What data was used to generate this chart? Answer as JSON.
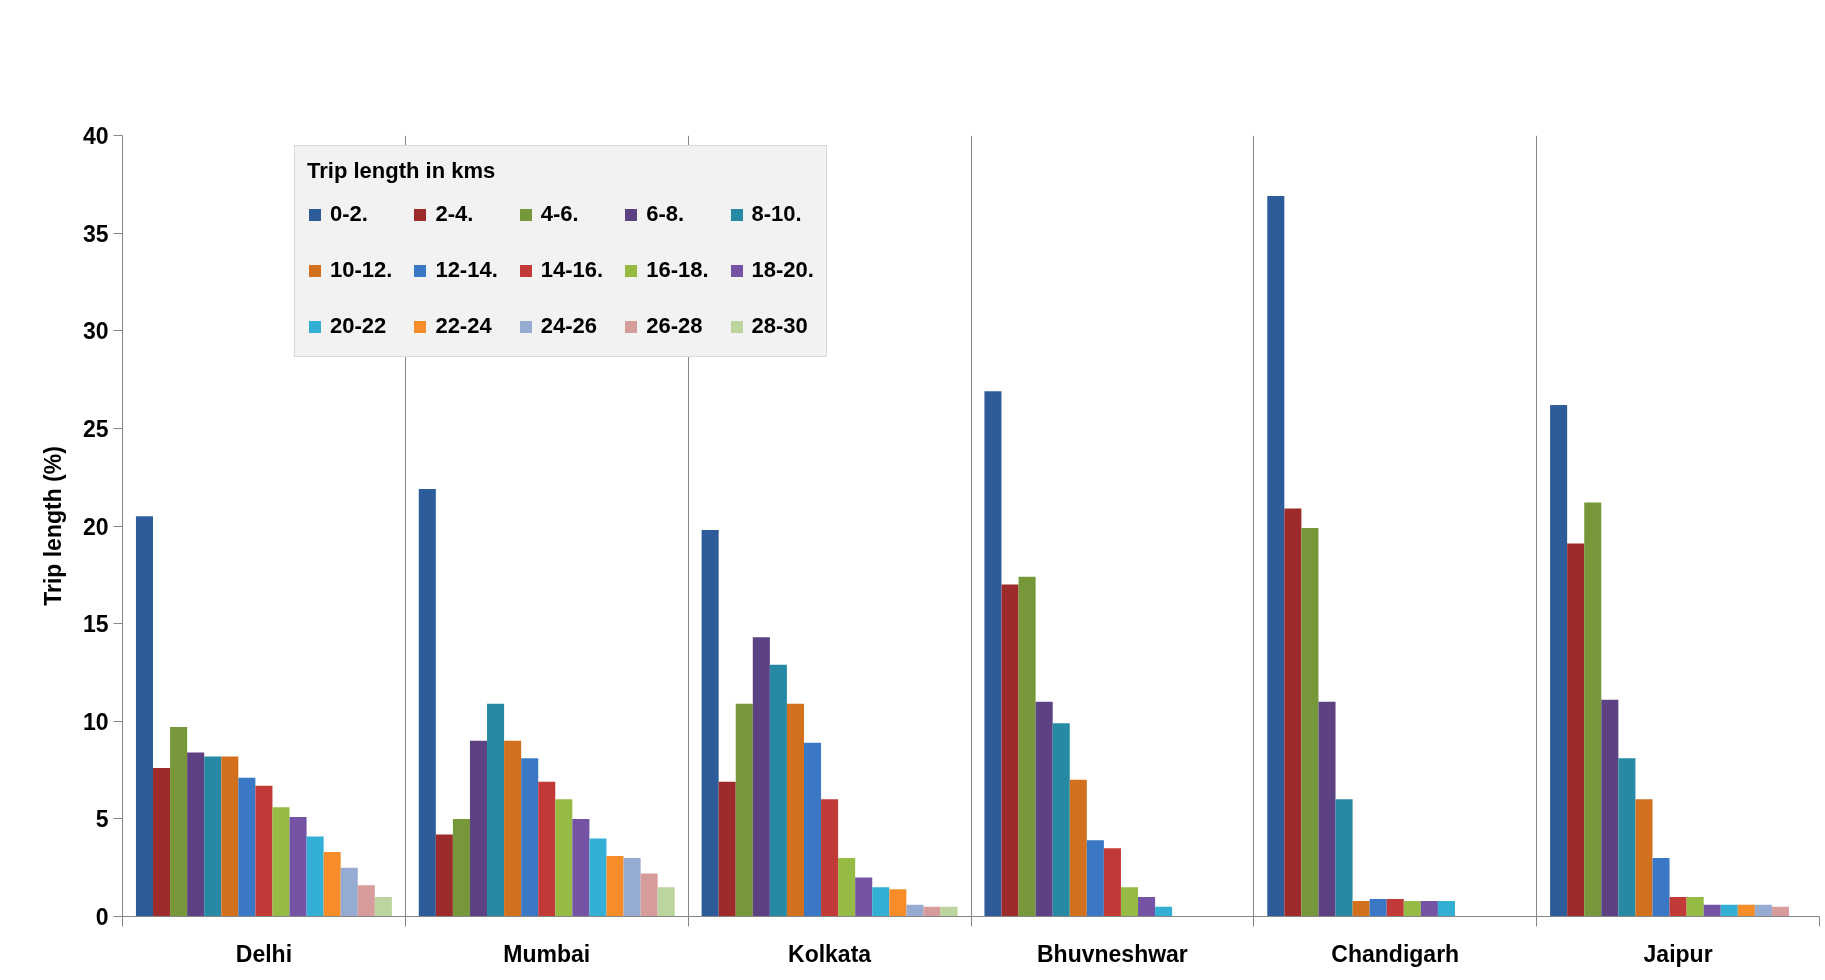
{
  "chart_data": {
    "type": "bar",
    "ylabel": "Trip length (%)",
    "legend_title": "Trip length in kms",
    "categories": [
      "Delhi",
      "Mumbai",
      "Kolkata",
      "Bhuvneshwar",
      "Chandigarh",
      "Jaipur"
    ],
    "series": [
      {
        "name": "0-2.",
        "color": "#2e5c9a",
        "values": [
          20.5,
          21.9,
          19.8,
          26.9,
          36.9,
          26.2
        ]
      },
      {
        "name": "2-4.",
        "color": "#9e2b2b",
        "values": [
          7.6,
          4.2,
          6.9,
          17.0,
          20.9,
          19.1
        ]
      },
      {
        "name": "4-6.",
        "color": "#77983a",
        "values": [
          9.7,
          5.0,
          10.9,
          17.4,
          19.9,
          21.2
        ]
      },
      {
        "name": "6-8.",
        "color": "#5c4282",
        "values": [
          8.4,
          9.0,
          14.3,
          11.0,
          11.0,
          11.1
        ]
      },
      {
        "name": "8-10.",
        "color": "#268aa5",
        "values": [
          8.2,
          10.9,
          12.9,
          9.9,
          6.0,
          8.1
        ]
      },
      {
        "name": "10-12.",
        "color": "#d2701e",
        "values": [
          8.2,
          9.0,
          10.9,
          7.0,
          0.8,
          6.0
        ]
      },
      {
        "name": "12-14.",
        "color": "#3a78c6",
        "values": [
          7.1,
          8.1,
          8.9,
          3.9,
          0.9,
          3.0
        ]
      },
      {
        "name": "14-16.",
        "color": "#c23a38",
        "values": [
          6.7,
          6.9,
          6.0,
          3.5,
          0.9,
          1.0
        ]
      },
      {
        "name": "16-18.",
        "color": "#95bb45",
        "values": [
          5.6,
          6.0,
          3.0,
          1.5,
          0.8,
          1.0
        ]
      },
      {
        "name": "18-20.",
        "color": "#7553a4",
        "values": [
          5.1,
          5.0,
          2.0,
          1.0,
          0.8,
          0.6
        ]
      },
      {
        "name": "20-22",
        "color": "#33aed4",
        "values": [
          4.1,
          4.0,
          1.5,
          0.5,
          0.8,
          0.6
        ]
      },
      {
        "name": "22-24",
        "color": "#f68d2a",
        "values": [
          3.3,
          3.1,
          1.4,
          null,
          null,
          0.6
        ]
      },
      {
        "name": "24-26",
        "color": "#96abd2",
        "values": [
          2.5,
          3.0,
          0.6,
          null,
          null,
          0.6
        ]
      },
      {
        "name": "26-28",
        "color": "#d69c9b",
        "values": [
          1.6,
          2.2,
          0.5,
          null,
          null,
          0.5
        ]
      },
      {
        "name": "28-30",
        "color": "#bcd49d",
        "values": [
          1.0,
          1.5,
          0.5,
          null,
          null,
          null
        ]
      }
    ],
    "ylim": [
      0,
      40
    ],
    "yticks": [
      0,
      5,
      10,
      15,
      20,
      25,
      30,
      35,
      40
    ],
    "grid": "x",
    "legend": "top left"
  }
}
